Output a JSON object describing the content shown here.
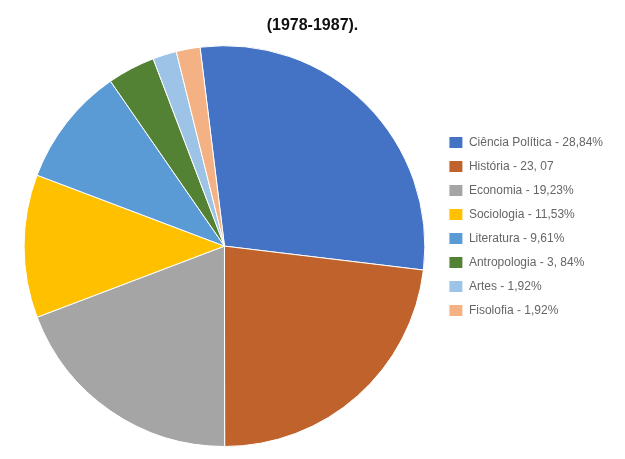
{
  "chart_data": {
    "type": "pie",
    "title": "(1978-1987).",
    "categories": [
      "Ciência Política - 28,84%",
      "História - 23, 07",
      "Economia - 19,23%",
      "Sociologia - 11,53%",
      "Literatura - 9,61%",
      "Antropologia - 3, 84%",
      "Artes - 1,92%",
      "Fisolofia - 1,92%"
    ],
    "values": [
      28.84,
      23.07,
      19.23,
      11.53,
      9.61,
      3.84,
      1.92,
      1.92
    ],
    "colors": [
      "#4472C4",
      "#C0622B",
      "#A5A5A5",
      "#FFC000",
      "#5B9BD5",
      "#548235",
      "#9DC3E6",
      "#F4B183"
    ],
    "legend": "right"
  }
}
